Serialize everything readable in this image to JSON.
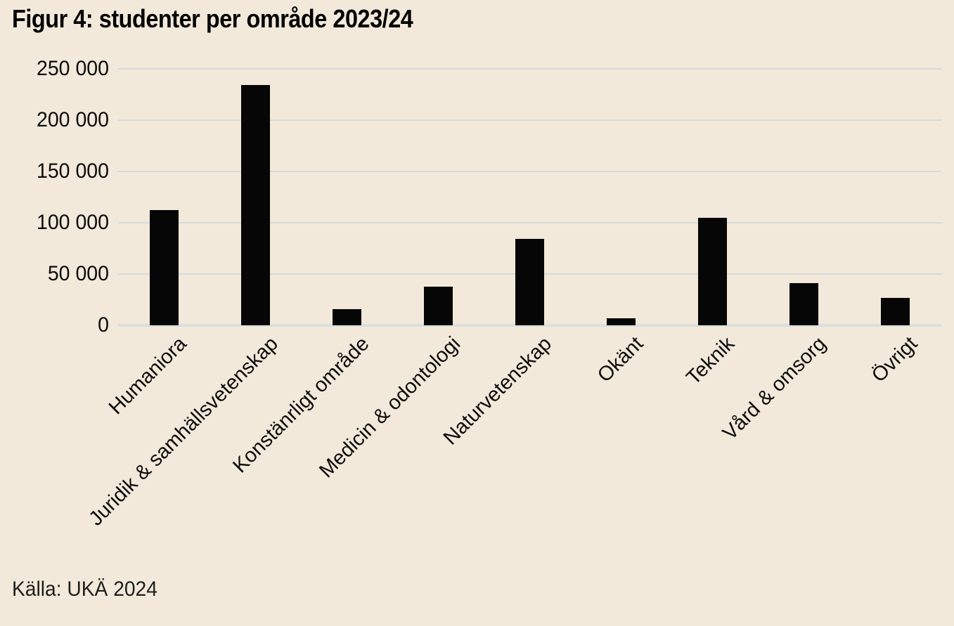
{
  "page": {
    "background_color": "#f2e9da"
  },
  "chart_data": {
    "type": "bar",
    "title": "Figur 4: studenter per område 2023/24",
    "source": "Källa: UKÄ 2024",
    "categories": [
      "Humaniora",
      "Juridik & samhällsvetenskap",
      "Konstänrligt område",
      "Medicin & odontologi",
      "Naturvetenskap",
      "Okänt",
      "Teknik",
      "Vård & omsorg",
      "Övrigt"
    ],
    "values": [
      112000,
      234000,
      16000,
      38000,
      84000,
      7000,
      105000,
      41000,
      27000
    ],
    "xlabel": "",
    "ylabel": "",
    "ylim": [
      0,
      250000
    ],
    "ytick_interval": 50000,
    "ytick_labels": [
      "0",
      "50 000",
      "100 000",
      "150 000",
      "200 000",
      "250 000"
    ],
    "grid": true,
    "legend": "none",
    "x_label_rotation_deg": 45,
    "bar_color": "#060606",
    "gridline_color": "#d6dad9",
    "baseline_color": "#dcdfde",
    "text_color": "#0c0c0c"
  }
}
